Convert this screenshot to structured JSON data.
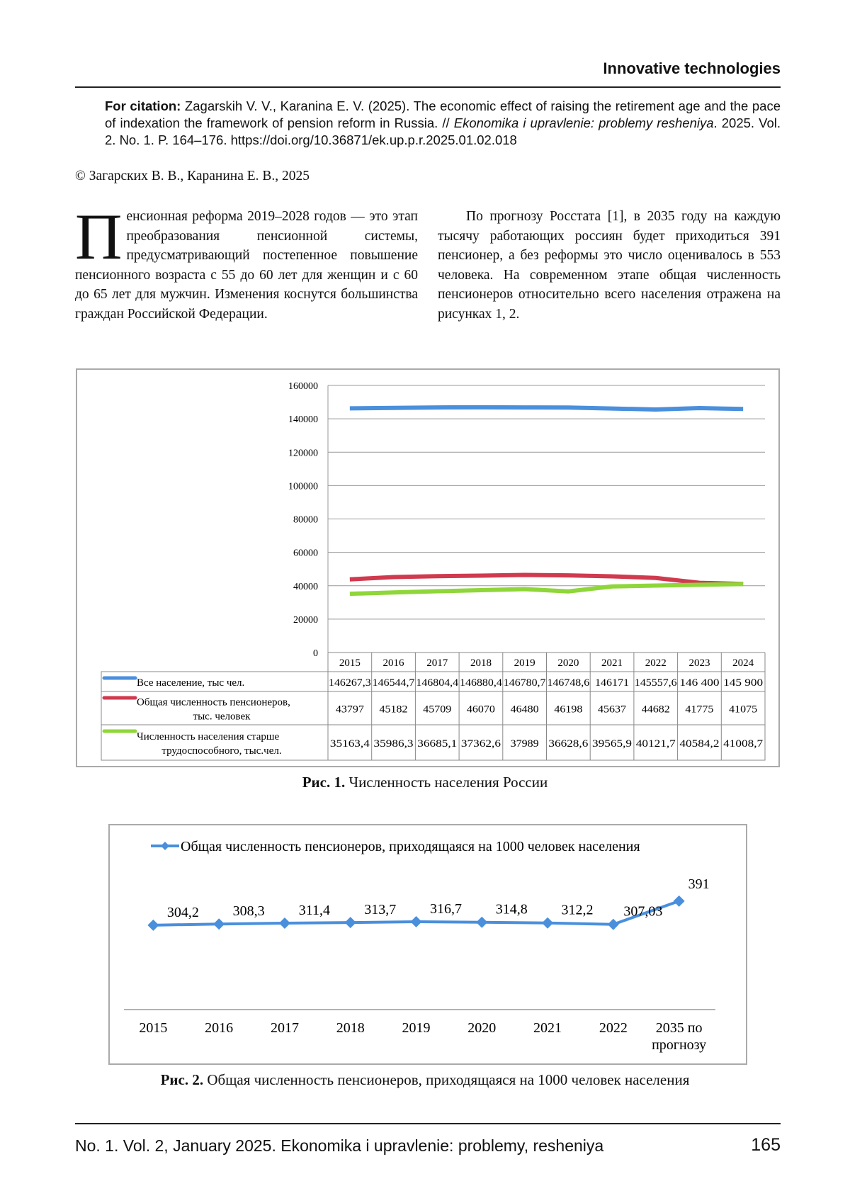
{
  "header": {
    "section": "Innovative technologies"
  },
  "citation": {
    "label": "For citation:",
    "text": " Zagarskih V. V., Karanina E. V. (2025). The economic effect of raising the retirement age and the pace of indexation the framework of pension reform in Russia. // ",
    "journal": "Ekonomika i upravlenie: problemy resheniya",
    "rest": ". 2025. Vol. 2. No. 1. P. 164–176. https://doi.org/10.36871/ek.up.p.r.2025.01.02.018"
  },
  "copyright": "© Загарских В. В., Каранина Е. В., 2025",
  "body": {
    "drop_cap": "П",
    "left": "енсионная реформа 2019–2028 годов — это этап преобразования пенсионной системы, предусматривающий постепенное повышение пенсионного возраста с 55 до 60 лет для женщин и с 60 до 65 лет для мужчин. Изменения коснутся большинства граждан Российской Федерации.",
    "right": "По прогнозу Росстата [1], в 2035 году на каждую тысячу работающих россиян будет приходиться 391 пенсионер, а без реформы это число оценивалось в 553 человека. На современном этапе общая численность пенсионеров относительно всего населения отражена на рисунках 1, 2."
  },
  "chart_data": [
    {
      "type": "line",
      "ylim": [
        0,
        160000
      ],
      "yticks": [
        "0",
        "20000",
        "40000",
        "60000",
        "80000",
        "100000",
        "120000",
        "140000",
        "160000"
      ],
      "grid": true,
      "legend": "table-below",
      "categories": [
        "2015",
        "2016",
        "2017",
        "2018",
        "2019",
        "2020",
        "2021",
        "2022",
        "2023",
        "2024"
      ],
      "series": [
        {
          "name": "Все население, тыс чел.",
          "color": "#4a8fdc",
          "values": [
            146267.3,
            146544.7,
            146804.4,
            146880.4,
            146780.7,
            146748.6,
            146171,
            145557.6,
            146400,
            145900
          ],
          "labels": [
            "146267,3",
            "146544,7",
            "146804,4",
            "146880,4",
            "146780,7",
            "146748,6",
            "146171",
            "145557,6",
            "146 400",
            "145 900"
          ]
        },
        {
          "name": "Общая численность пенсионеров, тыс. человек",
          "color": "#d03a4e",
          "values": [
            43797,
            45182,
            45709,
            46070,
            46480,
            46198,
            45637,
            44682,
            41775,
            41075
          ],
          "labels": [
            "43797",
            "45182",
            "45709",
            "46070",
            "46480",
            "46198",
            "45637",
            "44682",
            "41775",
            "41075"
          ]
        },
        {
          "name": "Численность населения старше трудоспособного, тыс.чел.",
          "color": "#8fd63a",
          "values": [
            35163.4,
            35986.3,
            36685.1,
            37362.6,
            37989,
            36628.6,
            39565.9,
            40121.7,
            40584.2,
            41008.7
          ],
          "labels": [
            "35163,4",
            "35986,3",
            "36685,1",
            "37362,6",
            "37989",
            "36628,6",
            "39565,9",
            "40121,7",
            "40584,2",
            "41008,7"
          ]
        }
      ]
    },
    {
      "type": "line",
      "legend": "top",
      "color": "#4a8fdc",
      "categories": [
        "2015",
        "2016",
        "2017",
        "2018",
        "2019",
        "2020",
        "2021",
        "2022",
        "2035 по прогнозу"
      ],
      "series": [
        {
          "name": "Общая численность пенсионеров, приходящаяся на 1000 человек населения",
          "values": [
            304.2,
            308.3,
            311.4,
            313.7,
            316.7,
            314.8,
            312.2,
            307.03,
            391
          ],
          "labels": [
            "304,2",
            "308,3",
            "311,4",
            "313,7",
            "316,7",
            "314,8",
            "312,2",
            "307,03",
            "391"
          ]
        }
      ]
    }
  ],
  "fig1_caption": {
    "label": "Рис. 1.",
    "text": " Численность населения России"
  },
  "fig2_caption": {
    "label": "Рис. 2.",
    "text": " Общая численность пенсионеров, приходящаяся на 1000 человек населения"
  },
  "footer": {
    "text": "No. 1. Vol. 2, January 2025. Ekonomika i upravlenie: problemy, resheniya",
    "page": "165"
  }
}
